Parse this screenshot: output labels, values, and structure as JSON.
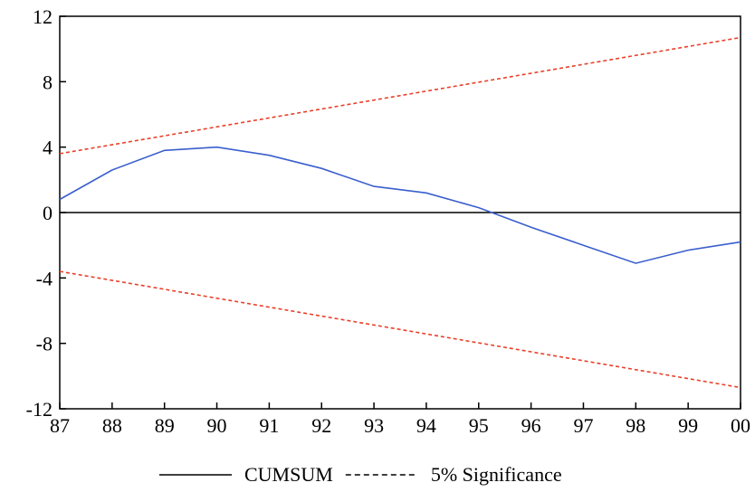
{
  "chart_data": {
    "type": "line",
    "title": "",
    "xlabel": "",
    "ylabel": "",
    "x_ticks": [
      "87",
      "88",
      "89",
      "90",
      "91",
      "92",
      "93",
      "94",
      "95",
      "96",
      "97",
      "98",
      "99",
      "00"
    ],
    "xlim": [
      0,
      13
    ],
    "ylim": [
      -12,
      12
    ],
    "y_ticks": [
      -12,
      -8,
      -4,
      0,
      4,
      8,
      12
    ],
    "y_tick_labels": [
      "-12",
      "-8",
      "-4",
      "0",
      "4",
      "8",
      "12"
    ],
    "reference_line": 0,
    "grid": false,
    "legend_position": "bottom-center",
    "series": [
      {
        "name": "CUMSUM",
        "color": "#3a5fcd",
        "style": "solid",
        "legend_style": "solid",
        "x": [
          0,
          1,
          2,
          3,
          4,
          5,
          6,
          7,
          8,
          9,
          10,
          11,
          12,
          13
        ],
        "y": [
          0.8,
          2.6,
          3.8,
          4.0,
          3.5,
          2.7,
          1.6,
          1.2,
          0.3,
          -0.9,
          -2.0,
          -3.1,
          -2.3,
          -1.8
        ]
      },
      {
        "name": "5% Significance",
        "color": "#e8402a",
        "style": "dashed",
        "legend_style": "dashed",
        "x": [
          0,
          13
        ],
        "y": [
          3.6,
          10.7
        ]
      },
      {
        "name": "",
        "color": "#e8402a",
        "style": "dashed",
        "legend_style": "none",
        "x": [
          0,
          13
        ],
        "y": [
          -3.6,
          -10.7
        ]
      }
    ]
  }
}
